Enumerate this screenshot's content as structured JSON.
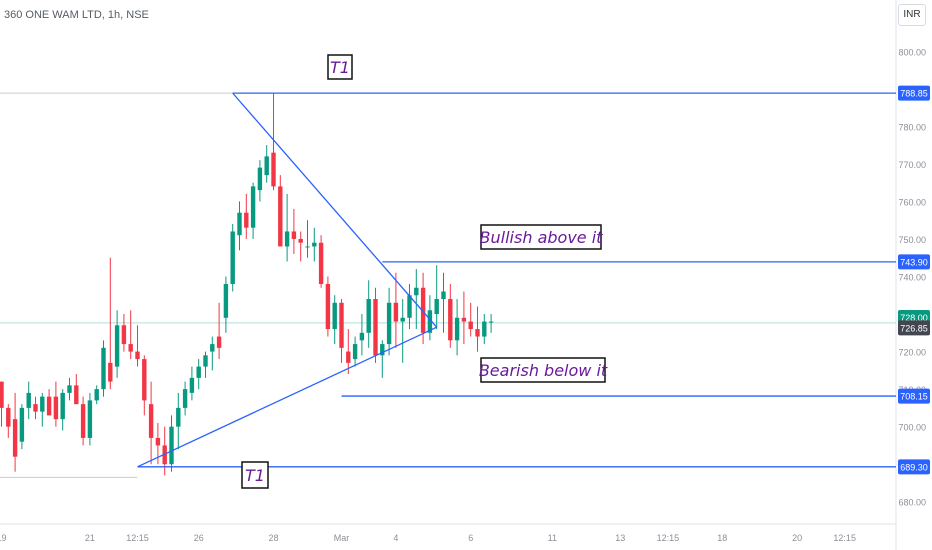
{
  "header": {
    "symbol": "360 ONE WAM LTD, 1h, NSE",
    "currency": "INR"
  },
  "chart_data": {
    "type": "candlestick",
    "ylim": [
      677,
      803
    ],
    "y_ticks": [
      {
        "value": 800,
        "label": "800.00"
      },
      {
        "value": 790,
        "label": "790.00"
      },
      {
        "value": 780,
        "label": "780.00"
      },
      {
        "value": 770,
        "label": "770.00"
      },
      {
        "value": 760,
        "label": "760.00"
      },
      {
        "value": 750,
        "label": "750.00"
      },
      {
        "value": 740,
        "label": "740.00"
      },
      {
        "value": 730,
        "label": "730.00"
      },
      {
        "value": 720,
        "label": "720.00"
      },
      {
        "value": 710,
        "label": "710.00"
      },
      {
        "value": 700,
        "label": "700.00"
      },
      {
        "value": 690,
        "label": "690.00"
      },
      {
        "value": 680,
        "label": "680.00"
      }
    ],
    "x_ticks": [
      {
        "index": 0,
        "label": "19"
      },
      {
        "index": 13,
        "label": "21"
      },
      {
        "index": 20,
        "label": "12:15"
      },
      {
        "index": 29,
        "label": "26"
      },
      {
        "index": 40,
        "label": "28"
      },
      {
        "index": 50,
        "label": "Mar"
      },
      {
        "index": 58,
        "label": "4"
      },
      {
        "index": 69,
        "label": "6"
      },
      {
        "index": 81,
        "label": "11"
      },
      {
        "index": 91,
        "label": "13"
      },
      {
        "index": 98,
        "label": "12:15"
      },
      {
        "index": 106,
        "label": "18"
      },
      {
        "index": 117,
        "label": "20"
      },
      {
        "index": 124,
        "label": "12:15"
      }
    ],
    "price_levels": [
      {
        "value": 788.85,
        "label": "788.85",
        "color": "#2962ff"
      },
      {
        "value": 743.9,
        "label": "743.90",
        "color": "#2962ff"
      },
      {
        "value": 708.15,
        "label": "708.15",
        "color": "#2962ff"
      },
      {
        "value": 689.3,
        "label": "689.30",
        "color": "#2962ff"
      },
      {
        "value": 728.0,
        "label": "728.00",
        "color": "#089981"
      },
      {
        "value": 726.85,
        "label": "726.85",
        "color": "#434651"
      }
    ],
    "annotations": [
      {
        "text": "T1",
        "anchor": "top"
      },
      {
        "text": "Bullish above it",
        "anchor": "upper-line"
      },
      {
        "text": "Bearish below it",
        "anchor": "lower-line"
      },
      {
        "text": "T1",
        "anchor": "bottom"
      }
    ],
    "triangle": {
      "apex": {
        "index": 64,
        "value": 726.5
      },
      "upper_start": {
        "index": 34,
        "value": 788.85
      },
      "lower_start": {
        "index": 20,
        "value": 689.3
      }
    },
    "candles": [
      [
        712,
        712,
        700,
        705
      ],
      [
        705,
        706,
        697,
        700
      ],
      [
        702,
        709,
        688,
        692
      ],
      [
        696,
        706,
        694,
        705
      ],
      [
        705,
        712,
        702,
        709
      ],
      [
        706,
        708,
        702,
        704
      ],
      [
        704,
        709,
        700,
        708
      ],
      [
        708,
        710,
        703,
        703
      ],
      [
        708,
        712,
        700,
        702
      ],
      [
        702,
        710,
        699,
        709
      ],
      [
        709,
        713,
        707,
        711
      ],
      [
        711,
        714,
        706,
        706
      ],
      [
        706,
        708,
        695,
        697
      ],
      [
        697,
        709,
        695,
        707
      ],
      [
        707,
        711,
        706,
        710
      ],
      [
        710,
        723,
        708,
        721
      ],
      [
        717,
        745,
        710,
        712
      ],
      [
        716,
        731,
        713,
        727
      ],
      [
        727,
        730,
        720,
        722
      ],
      [
        722,
        731,
        718,
        720
      ],
      [
        720,
        727,
        716,
        718
      ],
      [
        718,
        719,
        703,
        707
      ],
      [
        706,
        712,
        690,
        697
      ],
      [
        697,
        701,
        690,
        695
      ],
      [
        695,
        700,
        687,
        690
      ],
      [
        690,
        703,
        688,
        700
      ],
      [
        700,
        709,
        694,
        705
      ],
      [
        705,
        712,
        703,
        710
      ],
      [
        709,
        716,
        707,
        713
      ],
      [
        713,
        718,
        710,
        716
      ],
      [
        716,
        720,
        713,
        719
      ],
      [
        720,
        724,
        715,
        722
      ],
      [
        724,
        733,
        718,
        721
      ],
      [
        729,
        740,
        725,
        738
      ],
      [
        738,
        754,
        736,
        752
      ],
      [
        751,
        760,
        747,
        757
      ],
      [
        757,
        762,
        750,
        753
      ],
      [
        753,
        765,
        750,
        764
      ],
      [
        763,
        771,
        760,
        769
      ],
      [
        767,
        775,
        765,
        772
      ],
      [
        773,
        789,
        763,
        764
      ],
      [
        764,
        767,
        748,
        748
      ],
      [
        748,
        762,
        744,
        752
      ],
      [
        752,
        758,
        746,
        750
      ],
      [
        750,
        752,
        744,
        749
      ],
      [
        748,
        755,
        745,
        748
      ],
      [
        748,
        753,
        744,
        749
      ],
      [
        749,
        751,
        737,
        738
      ],
      [
        738,
        740,
        724,
        726
      ],
      [
        726,
        735,
        722,
        733
      ],
      [
        733,
        734,
        717,
        721
      ],
      [
        720,
        726,
        714,
        717
      ],
      [
        718,
        724,
        716,
        722
      ],
      [
        723,
        730,
        719,
        725
      ],
      [
        725,
        739,
        721,
        734
      ],
      [
        734,
        737,
        717,
        719
      ],
      [
        719,
        723,
        713,
        722
      ],
      [
        722,
        737,
        719,
        733
      ],
      [
        733,
        741,
        721,
        728
      ],
      [
        728,
        734,
        717,
        729
      ],
      [
        729,
        738,
        726,
        735
      ],
      [
        735,
        742,
        726,
        737
      ],
      [
        737,
        741,
        722,
        725
      ],
      [
        725,
        735,
        723,
        731
      ],
      [
        730,
        743,
        726,
        734
      ],
      [
        734,
        741,
        725,
        736
      ],
      [
        734,
        738,
        721,
        723
      ],
      [
        723,
        734,
        719,
        729
      ],
      [
        729,
        736,
        722,
        728
      ],
      [
        728,
        733,
        724,
        726
      ],
      [
        726,
        732,
        720,
        724
      ],
      [
        724,
        730,
        722,
        728
      ],
      [
        728,
        730,
        725,
        728
      ]
    ]
  }
}
